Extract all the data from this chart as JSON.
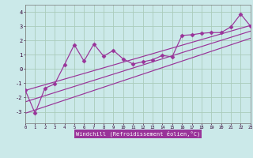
{
  "xlabel": "Windchill (Refroidissement éolien,°C)",
  "bg_color": "#cbe9e9",
  "grid_color": "#aaccbb",
  "line_color": "#993399",
  "xlim": [
    0,
    23
  ],
  "ylim": [
    -3.8,
    4.5
  ],
  "x_ticks": [
    0,
    1,
    2,
    3,
    4,
    5,
    6,
    7,
    8,
    9,
    10,
    11,
    12,
    13,
    14,
    15,
    16,
    17,
    18,
    19,
    20,
    21,
    22,
    23
  ],
  "y_ticks": [
    -3,
    -2,
    -1,
    0,
    1,
    2,
    3,
    4
  ],
  "scatter_x": [
    0,
    1,
    2,
    3,
    4,
    5,
    6,
    7,
    8,
    9,
    10,
    11,
    12,
    13,
    14,
    15,
    16,
    17,
    18,
    19,
    20,
    21,
    22,
    23
  ],
  "scatter_y": [
    -1.5,
    -3.1,
    -1.35,
    -1.05,
    0.3,
    1.7,
    0.55,
    1.75,
    0.9,
    1.3,
    0.7,
    0.35,
    0.5,
    0.65,
    0.95,
    0.85,
    2.35,
    2.4,
    2.5,
    2.55,
    2.55,
    2.95,
    3.85,
    3.0
  ],
  "line1_x": [
    0,
    23
  ],
  "line1_y": [
    -3.1,
    2.15
  ],
  "line2_x": [
    0,
    23
  ],
  "line2_y": [
    -2.3,
    2.65
  ],
  "line3_x": [
    0,
    23
  ],
  "line3_y": [
    -1.5,
    3.05
  ],
  "xlabel_color": "#330033",
  "tick_label_color": "#330033",
  "xlabel_bg": "#993399"
}
